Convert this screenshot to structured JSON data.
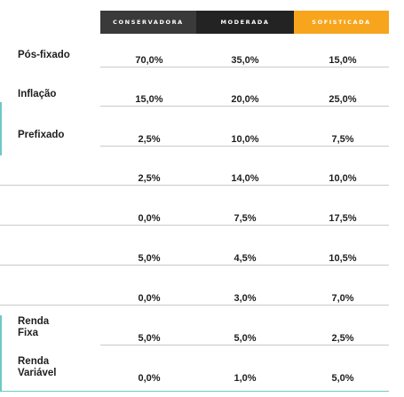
{
  "header": {
    "colors": {
      "conservadora": "#3a3a3a",
      "moderada": "#232323",
      "sofisticada": "#f7a51c"
    },
    "columns": [
      "CONSERVADORA",
      "MODERADA",
      "SOFISTICADA"
    ]
  },
  "rows": [
    {
      "label": "Pós-fixado",
      "values": [
        "70,0%",
        "35,0%",
        "15,0%"
      ]
    },
    {
      "label": "Inflação",
      "values": [
        "15,0%",
        "20,0%",
        "25,0%"
      ]
    },
    {
      "label": "Prefixado",
      "values": [
        "2,5%",
        "10,0%",
        "7,5%"
      ]
    },
    {
      "label": "",
      "values": [
        "2,5%",
        "14,0%",
        "10,0%"
      ]
    },
    {
      "label": "",
      "values": [
        "0,0%",
        "7,5%",
        "17,5%"
      ]
    },
    {
      "label": "",
      "values": [
        "5,0%",
        "4,5%",
        "10,5%"
      ]
    },
    {
      "label": "",
      "values": [
        "0,0%",
        "3,0%",
        "7,0%"
      ]
    },
    {
      "label_line1": "Renda",
      "label_line2": "Fixa",
      "values": [
        "5,0%",
        "5,0%",
        "2,5%"
      ]
    },
    {
      "label_line1": "Renda",
      "label_line2": "Variável",
      "values": [
        "0,0%",
        "1,0%",
        "5,0%"
      ]
    }
  ]
}
